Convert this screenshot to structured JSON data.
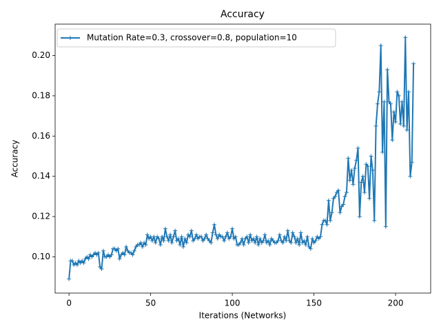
{
  "chart_data": {
    "type": "line",
    "title": "Accuracy",
    "x_label": "Iterations (Networks)",
    "y_label": "Accuracy",
    "xlim": [
      -8.5,
      221.5
    ],
    "ylim": [
      0.082,
      0.2156
    ],
    "xticks": [
      0,
      50,
      100,
      150,
      200
    ],
    "yticks": [
      {
        "value": 0.1,
        "label": "0.10"
      },
      0.12,
      0.14,
      0.16,
      0.18,
      {
        "value": 0.2,
        "label": "0.20"
      }
    ],
    "grid": false,
    "legend": "upper left",
    "x": [
      0,
      1,
      2,
      3,
      4,
      5,
      6,
      7,
      8,
      9,
      10,
      11,
      12,
      13,
      14,
      15,
      16,
      17,
      18,
      19,
      20,
      21,
      22,
      23,
      24,
      25,
      26,
      27,
      28,
      29,
      30,
      31,
      32,
      33,
      34,
      35,
      36,
      37,
      38,
      39,
      40,
      41,
      42,
      43,
      44,
      45,
      46,
      47,
      48,
      49,
      50,
      51,
      52,
      53,
      54,
      55,
      56,
      57,
      58,
      59,
      60,
      61,
      62,
      63,
      64,
      65,
      66,
      67,
      68,
      69,
      70,
      71,
      72,
      73,
      74,
      75,
      76,
      77,
      78,
      79,
      80,
      81,
      82,
      83,
      84,
      85,
      86,
      87,
      88,
      89,
      90,
      91,
      92,
      93,
      94,
      95,
      96,
      97,
      98,
      99,
      100,
      101,
      102,
      103,
      104,
      105,
      106,
      107,
      108,
      109,
      110,
      111,
      112,
      113,
      114,
      115,
      116,
      117,
      118,
      119,
      120,
      121,
      122,
      123,
      124,
      125,
      126,
      127,
      128,
      129,
      130,
      131,
      132,
      133,
      134,
      135,
      136,
      137,
      138,
      139,
      140,
      141,
      142,
      143,
      144,
      145,
      146,
      147,
      148,
      149,
      150,
      151,
      152,
      153,
      154,
      155,
      156,
      157,
      158,
      159,
      160,
      161,
      162,
      163,
      164,
      165,
      166,
      167,
      168,
      169,
      170,
      171,
      172,
      173,
      174,
      175,
      176,
      177,
      178,
      179,
      180,
      181,
      182,
      183,
      184,
      185,
      186,
      187,
      188,
      189,
      190,
      191,
      192,
      193,
      194,
      195,
      196,
      197,
      198,
      199,
      200,
      201,
      202,
      203,
      204,
      205,
      206,
      207,
      208,
      209,
      210,
      211
    ],
    "series": [
      {
        "name": "Mutation Rate=0.3, crossover=0.8, population=10",
        "color": "#1f77b4",
        "values": [
          0.089,
          0.098,
          0.098,
          0.096,
          0.097,
          0.096,
          0.098,
          0.097,
          0.098,
          0.097,
          0.099,
          0.1,
          0.099,
          0.101,
          0.1,
          0.101,
          0.102,
          0.101,
          0.102,
          0.095,
          0.094,
          0.103,
          0.1,
          0.1,
          0.101,
          0.1,
          0.101,
          0.104,
          0.104,
          0.103,
          0.104,
          0.099,
          0.101,
          0.102,
          0.101,
          0.105,
          0.103,
          0.102,
          0.102,
          0.101,
          0.103,
          0.105,
          0.106,
          0.106,
          0.107,
          0.105,
          0.107,
          0.106,
          0.111,
          0.109,
          0.11,
          0.108,
          0.11,
          0.107,
          0.11,
          0.109,
          0.106,
          0.11,
          0.108,
          0.114,
          0.11,
          0.108,
          0.111,
          0.107,
          0.11,
          0.113,
          0.108,
          0.109,
          0.106,
          0.11,
          0.105,
          0.109,
          0.107,
          0.111,
          0.11,
          0.113,
          0.108,
          0.109,
          0.111,
          0.109,
          0.11,
          0.11,
          0.108,
          0.109,
          0.111,
          0.109,
          0.108,
          0.107,
          0.112,
          0.116,
          0.111,
          0.109,
          0.111,
          0.11,
          0.11,
          0.108,
          0.11,
          0.112,
          0.109,
          0.11,
          0.114,
          0.109,
          0.11,
          0.106,
          0.106,
          0.107,
          0.109,
          0.106,
          0.109,
          0.11,
          0.107,
          0.111,
          0.108,
          0.109,
          0.107,
          0.11,
          0.106,
          0.109,
          0.107,
          0.108,
          0.111,
          0.107,
          0.108,
          0.106,
          0.109,
          0.108,
          0.107,
          0.107,
          0.108,
          0.111,
          0.108,
          0.107,
          0.11,
          0.108,
          0.113,
          0.108,
          0.107,
          0.112,
          0.11,
          0.107,
          0.109,
          0.106,
          0.112,
          0.107,
          0.108,
          0.106,
          0.11,
          0.105,
          0.104,
          0.109,
          0.107,
          0.108,
          0.11,
          0.109,
          0.11,
          0.116,
          0.118,
          0.118,
          0.116,
          0.128,
          0.118,
          0.122,
          0.129,
          0.13,
          0.132,
          0.133,
          0.122,
          0.125,
          0.126,
          0.13,
          0.132,
          0.149,
          0.138,
          0.143,
          0.136,
          0.144,
          0.148,
          0.154,
          0.12,
          0.137,
          0.14,
          0.132,
          0.146,
          0.145,
          0.129,
          0.15,
          0.143,
          0.118,
          0.165,
          0.176,
          0.182,
          0.205,
          0.152,
          0.177,
          0.115,
          0.193,
          0.177,
          0.176,
          0.158,
          0.172,
          0.167,
          0.182,
          0.18,
          0.166,
          0.177,
          0.165,
          0.209,
          0.163,
          0.182,
          0.14,
          0.147,
          0.196
        ]
      }
    ]
  }
}
